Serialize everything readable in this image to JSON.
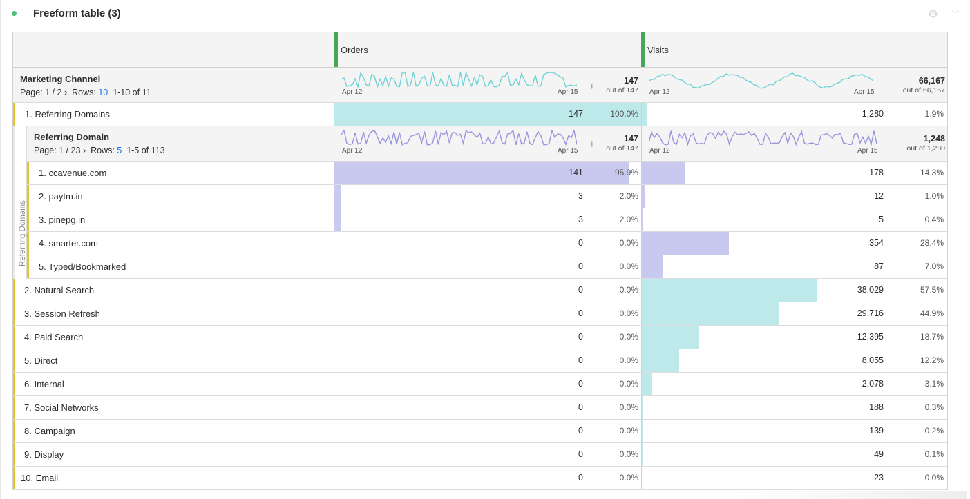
{
  "panel": {
    "title": "Freeform table (3)"
  },
  "columns": {
    "orders": "Orders",
    "visits": "Visits"
  },
  "top_summary": {
    "dimension": "Marketing Channel",
    "page_label": "Page:",
    "page_current": "1",
    "page_total": "/ 2",
    "rows_label": "Rows:",
    "rows_value": "10",
    "range": "1-10 of 11",
    "date_start": "Apr 12",
    "date_end": "Apr 15",
    "orders_total": "147",
    "orders_outof": "out of 147",
    "visits_total": "66,167",
    "visits_outof": "out of 66,167"
  },
  "sub_summary": {
    "dimension": "Referring Domain",
    "page_label": "Page:",
    "page_current": "1",
    "page_total": "/ 23",
    "rows_label": "Rows:",
    "rows_value": "5",
    "range": "1-5 of 113",
    "date_start": "Apr 12",
    "date_end": "Apr 15",
    "orders_total": "147",
    "orders_outof": "out of 147",
    "visits_total": "1,248",
    "visits_outof": "out of 1,280"
  },
  "breakdown_label": "Referring Domains",
  "rows": [
    {
      "label": "1. Referring Domains",
      "orders": "147",
      "orders_pct": "100.0%",
      "orders_fill": 1.0,
      "visits": "1,280",
      "visits_pct": "1.9%",
      "visits_fill": 0.019
    },
    {
      "label": "2. Natural Search",
      "orders": "0",
      "orders_pct": "0.0%",
      "orders_fill": 0,
      "visits": "38,029",
      "visits_pct": "57.5%",
      "visits_fill": 0.575
    },
    {
      "label": "3. Session Refresh",
      "orders": "0",
      "orders_pct": "0.0%",
      "orders_fill": 0,
      "visits": "29,716",
      "visits_pct": "44.9%",
      "visits_fill": 0.449
    },
    {
      "label": "4. Paid Search",
      "orders": "0",
      "orders_pct": "0.0%",
      "orders_fill": 0,
      "visits": "12,395",
      "visits_pct": "18.7%",
      "visits_fill": 0.187
    },
    {
      "label": "5. Direct",
      "orders": "0",
      "orders_pct": "0.0%",
      "orders_fill": 0,
      "visits": "8,055",
      "visits_pct": "12.2%",
      "visits_fill": 0.122
    },
    {
      "label": "6. Internal",
      "orders": "0",
      "orders_pct": "0.0%",
      "orders_fill": 0,
      "visits": "2,078",
      "visits_pct": "3.1%",
      "visits_fill": 0.031
    },
    {
      "label": "7. Social Networks",
      "orders": "0",
      "orders_pct": "0.0%",
      "orders_fill": 0,
      "visits": "188",
      "visits_pct": "0.3%",
      "visits_fill": 0.003
    },
    {
      "label": "8. Campaign",
      "orders": "0",
      "orders_pct": "0.0%",
      "orders_fill": 0,
      "visits": "139",
      "visits_pct": "0.2%",
      "visits_fill": 0.002
    },
    {
      "label": "9. Display",
      "orders": "0",
      "orders_pct": "0.0%",
      "orders_fill": 0,
      "visits": "49",
      "visits_pct": "0.1%",
      "visits_fill": 0.001
    },
    {
      "label": "10. Email",
      "orders": "0",
      "orders_pct": "0.0%",
      "orders_fill": 0,
      "visits": "23",
      "visits_pct": "0.0%",
      "visits_fill": 0.0
    }
  ],
  "subrows": [
    {
      "label": "1. ccavenue.com",
      "orders": "141",
      "orders_pct": "95.9%",
      "orders_fill": 0.959,
      "visits": "178",
      "visits_pct": "14.3%",
      "visits_fill": 0.143
    },
    {
      "label": "2. paytm.in",
      "orders": "3",
      "orders_pct": "2.0%",
      "orders_fill": 0.02,
      "visits": "12",
      "visits_pct": "1.0%",
      "visits_fill": 0.01
    },
    {
      "label": "3. pinepg.in",
      "orders": "3",
      "orders_pct": "2.0%",
      "orders_fill": 0.02,
      "visits": "5",
      "visits_pct": "0.4%",
      "visits_fill": 0.004
    },
    {
      "label": "4. smarter.com",
      "orders": "0",
      "orders_pct": "0.0%",
      "orders_fill": 0,
      "visits": "354",
      "visits_pct": "28.4%",
      "visits_fill": 0.284
    },
    {
      "label": "5. Typed/Bookmarked",
      "orders": "0",
      "orders_pct": "0.0%",
      "orders_fill": 0,
      "visits": "87",
      "visits_pct": "7.0%",
      "visits_fill": 0.07
    }
  ],
  "colors": {
    "teal_bar": "#bde9eb",
    "teal_line": "#6fd3d6",
    "purple_bar": "#c9c8ee",
    "purple_line": "#9a94dd",
    "green_grip": "#45a856",
    "yellow_marker": "#e4c42d",
    "link_blue": "#1473e6"
  },
  "icons": {
    "settings": "gear-icon",
    "collapse": "chevron-down-icon",
    "sort": "sort-descending-icon",
    "status": "status-dot-icon"
  }
}
